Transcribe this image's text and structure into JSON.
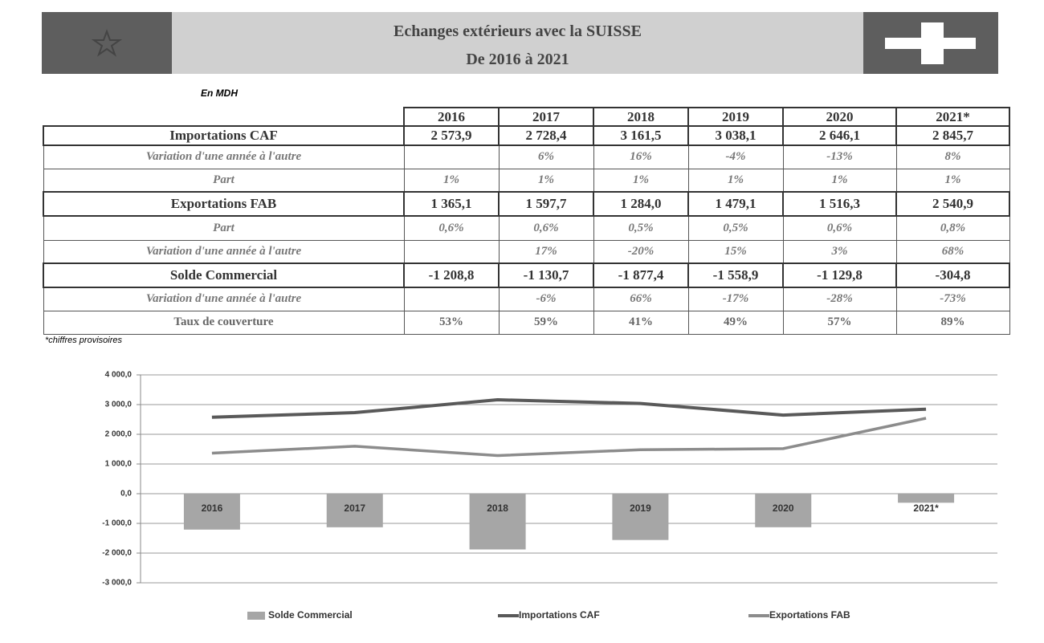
{
  "header": {
    "title": "Echanges extérieurs avec la SUISSE",
    "subtitle": "De 2016 à 2021"
  },
  "unit": "En MDH",
  "table": {
    "columns": [
      "2016",
      "2017",
      "2018",
      "2019",
      "2020",
      "2021*"
    ],
    "rows": [
      {
        "label": "Importations  CAF",
        "cells": [
          "2 573,9",
          "2 728,4",
          "3 161,5",
          "3 038,1",
          "2 646,1",
          "2 845,7"
        ]
      },
      {
        "label": "Variation d'une année à l'autre",
        "cells": [
          null,
          "6%",
          "16%",
          "-4%",
          "-13%",
          "8%"
        ]
      },
      {
        "label": "Part",
        "cells": [
          "1%",
          "1%",
          "1%",
          "1%",
          "1%",
          "1%"
        ]
      },
      {
        "label": "Exportations  FAB",
        "cells": [
          "1 365,1",
          "1 597,7",
          "1 284,0",
          "1 479,1",
          "1 516,3",
          "2 540,9"
        ]
      },
      {
        "label": "Part",
        "cells": [
          "0,6%",
          "0,6%",
          "0,5%",
          "0,5%",
          "0,6%",
          "0,8%"
        ]
      },
      {
        "label": "Variation d'une année à l'autre",
        "cells": [
          null,
          "17%",
          "-20%",
          "15%",
          "3%",
          "68%"
        ]
      },
      {
        "label": "Solde Commercial",
        "cells": [
          "-1 208,8",
          "-1 130,7",
          "-1 877,4",
          "-1 558,9",
          "-1 129,8",
          "-304,8"
        ]
      },
      {
        "label": "Variation d'une année à l'autre",
        "cells": [
          null,
          "-6%",
          "66%",
          "-17%",
          "-28%",
          "-73%"
        ]
      },
      {
        "label": "Taux de couverture",
        "cells": [
          "53%",
          "59%",
          "41%",
          "49%",
          "57%",
          "89%"
        ]
      }
    ]
  },
  "footnote": "*chiffres provisoires",
  "chart_data": {
    "type": "bar",
    "categories": [
      "2016",
      "2017",
      "2018",
      "2019",
      "2020",
      "2021*"
    ],
    "series": [
      {
        "name": "Solde Commercial",
        "type": "bar",
        "color": "#a6a6a6",
        "values": [
          -1208.8,
          -1130.7,
          -1877.4,
          -1558.9,
          -1129.8,
          -304.8
        ]
      },
      {
        "name": "Importations  CAF",
        "type": "line",
        "color": "#595959",
        "values": [
          2573.9,
          2728.4,
          3161.5,
          3038.1,
          2646.1,
          2845.7
        ]
      },
      {
        "name": "Exportations  FAB",
        "type": "line",
        "color": "#8c8c8c",
        "values": [
          1365.1,
          1597.7,
          1284.0,
          1479.1,
          1516.3,
          2540.9
        ]
      }
    ],
    "ylim": [
      -3000,
      4000
    ],
    "yticks": [
      {
        "value": -3000,
        "label": "-3 000,0"
      },
      {
        "value": -2000,
        "label": "-2 000,0"
      },
      {
        "value": -1000,
        "label": "-1 000,0"
      },
      {
        "value": 0,
        "label": "0,0"
      },
      {
        "value": 1000,
        "label": "1 000,0"
      },
      {
        "value": 2000,
        "label": "2 000,0"
      },
      {
        "value": 3000,
        "label": "3 000,0"
      },
      {
        "value": 4000,
        "label": "4 000,0"
      }
    ],
    "grid": true,
    "legend": "bottom"
  }
}
